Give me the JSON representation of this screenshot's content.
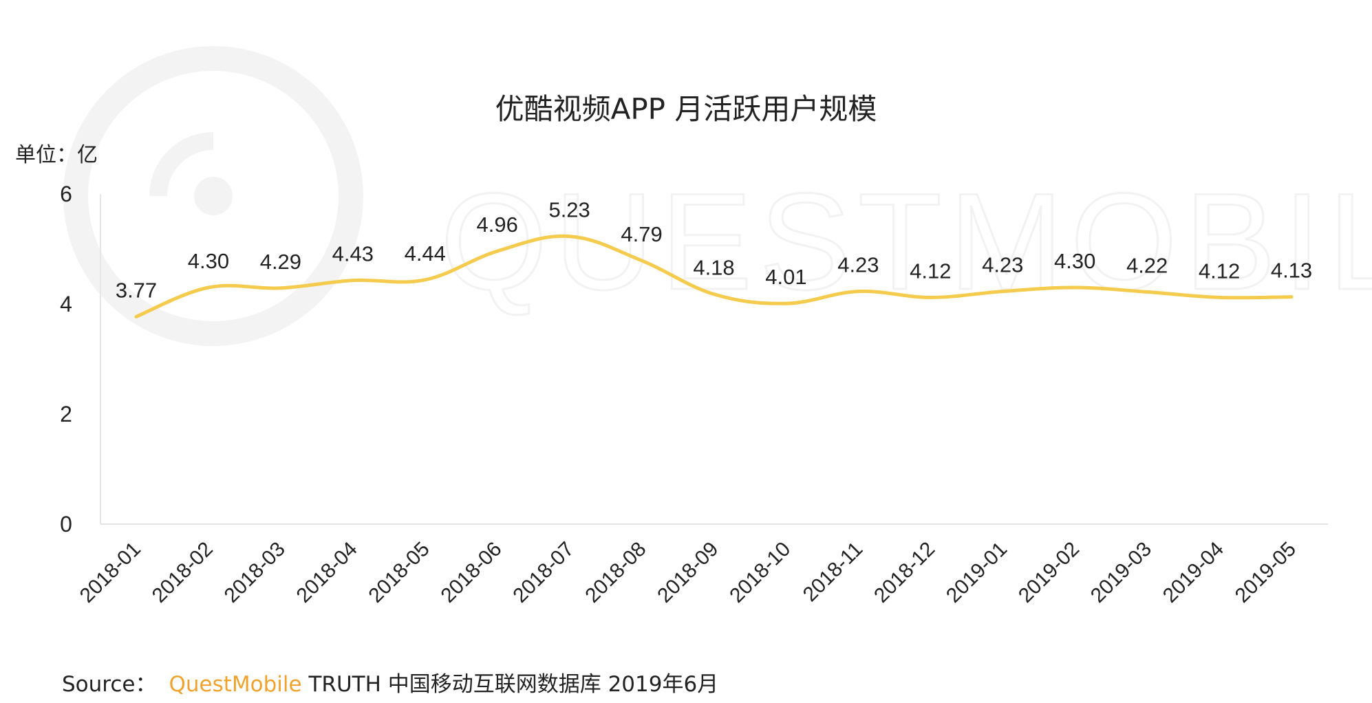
{
  "brand_color": "#F0A22E",
  "line_color": "#F5CB4D",
  "watermark": "QUESTMOBILE",
  "source": {
    "prefix": "Source：",
    "brand": "QuestMobile",
    "rest": " TRUTH 中国移动互联网数据库 2019年6月"
  },
  "chart_data": {
    "type": "line",
    "title": "优酷视频APP 月活跃用户规模",
    "unit_label": "单位：亿",
    "categories": [
      "2018-01",
      "2018-02",
      "2018-03",
      "2018-04",
      "2018-05",
      "2018-06",
      "2018-07",
      "2018-08",
      "2018-09",
      "2018-10",
      "2018-11",
      "2018-12",
      "2019-01",
      "2019-02",
      "2019-03",
      "2019-04",
      "2019-05"
    ],
    "series": [
      {
        "values": [
          3.77,
          4.3,
          4.29,
          4.43,
          4.44,
          4.96,
          5.23,
          4.79,
          4.18,
          4.01,
          4.23,
          4.12,
          4.23,
          4.3,
          4.22,
          4.12,
          4.13
        ]
      }
    ],
    "data_labels": [
      "3.77",
      "4.30",
      "4.29",
      "4.43",
      "4.44",
      "4.96",
      "5.23",
      "4.79",
      "4.18",
      "4.01",
      "4.23",
      "4.12",
      "4.23",
      "4.30",
      "4.22",
      "4.12",
      "4.13"
    ],
    "ylim": [
      0,
      6
    ],
    "yticks": [
      "0",
      "2",
      "4",
      "6"
    ],
    "smooth": true,
    "grid": false,
    "legend": "none"
  }
}
